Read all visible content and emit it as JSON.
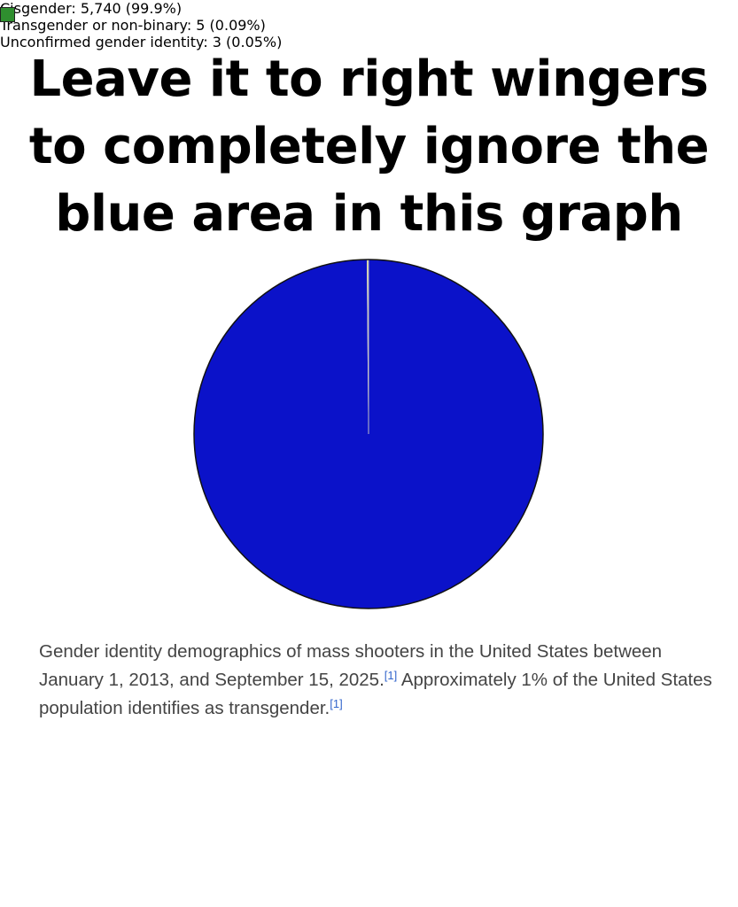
{
  "chart_data": {
    "type": "pie",
    "title": [
      "Leave it to right wingers",
      "to completely ignore the",
      "blue area in this graph"
    ],
    "caption": [
      "Gender identity demographics of mass shooters in the United States between January 1, 2013, and September 15, 2025.",
      "[1]",
      " Approximately 1% of the United States population identifies as transgender.",
      "[1]"
    ],
    "categories": [
      "Cisgender",
      "Transgender or non-binary",
      "Unconfirmed gender identity"
    ],
    "values": [
      5740,
      5,
      3
    ],
    "legend_labels": [
      "Cisgender: 5,740 (99.9%)",
      "Transgender or non-binary: 5 (0.09%)",
      "Unconfirmed gender identity: 3 (0.05%)"
    ],
    "colors": [
      "#0b12c9",
      "#ffff66",
      "#2f8f2f"
    ]
  }
}
